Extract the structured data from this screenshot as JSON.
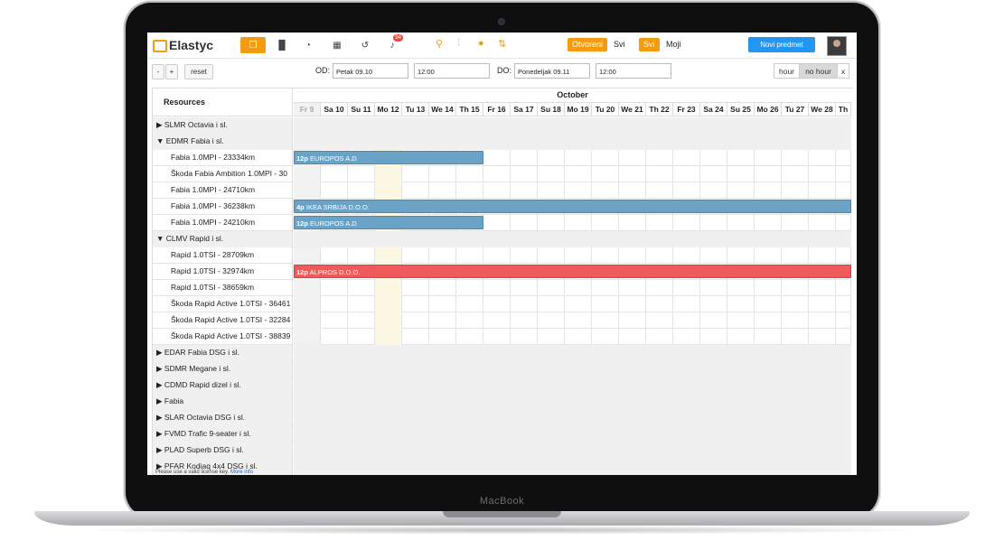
{
  "device_label": "MacBook",
  "app": {
    "logo_text": "Elastyc",
    "bell_count": "94",
    "filter_chips": [
      "Otvoreni",
      "Svi"
    ],
    "owner_chips": [
      "Svi",
      "Moji"
    ],
    "new_button": "Novi predmet"
  },
  "toolbar": {
    "minus": "-",
    "plus": "+",
    "reset": "reset",
    "from_label": "OD:",
    "from_date": "Petak 09.10",
    "from_time": "12:00",
    "to_label": "DO:",
    "to_date": "Ponedeljak 09.11",
    "to_time": "12:00",
    "hour": "hour",
    "no_hour": "no hour",
    "close": "x"
  },
  "scheduler": {
    "resources_header": "Resources",
    "month": "October",
    "days": [
      "Fr 9",
      "Sa 10",
      "Su 11",
      "Mo 12",
      "Tu 13",
      "We 14",
      "Th 15",
      "Fr 16",
      "Sa 17",
      "Su 18",
      "Mo 19",
      "Tu 20",
      "We 21",
      "Th 22",
      "Fr 23",
      "Sa 24",
      "Su 25",
      "Mo 26",
      "Tu 27",
      "We 28",
      "Th"
    ],
    "rows": [
      {
        "type": "group",
        "label": "▶ SLMR Octavia i sl."
      },
      {
        "type": "group",
        "label": "▼ EDMR Fabia i sl."
      },
      {
        "type": "child",
        "label": "Fabia 1.0MPI - 23334km"
      },
      {
        "type": "child",
        "label": "Škoda Fabia Ambition 1.0MPI - 30"
      },
      {
        "type": "child",
        "label": "Fabia 1.0MPI - 24710km"
      },
      {
        "type": "child",
        "label": "Fabia 1.0MPI - 36238km"
      },
      {
        "type": "child",
        "label": "Fabia 1.0MPI - 24210km"
      },
      {
        "type": "group",
        "label": "▼ CLMV Rapid i sl."
      },
      {
        "type": "child",
        "label": "Rapid 1.0TSI - 28709km"
      },
      {
        "type": "child",
        "label": "Rapid 1.0TSI - 32974km"
      },
      {
        "type": "child",
        "label": "Rapid 1.0TSI - 38659km"
      },
      {
        "type": "child",
        "label": "Škoda Rapid Active 1.0TSI - 36461"
      },
      {
        "type": "child",
        "label": "Škoda Rapid Active 1.0TSI - 32284"
      },
      {
        "type": "child",
        "label": "Škoda Rapid Active 1.0TSI - 38839"
      },
      {
        "type": "group",
        "label": "▶ EDAR Fabia DSG i sl."
      },
      {
        "type": "group",
        "label": "▶ SDMR Megane i sl."
      },
      {
        "type": "group",
        "label": "▶ CDMD Rapid dizel i sl."
      },
      {
        "type": "group",
        "label": "▶ Fabia"
      },
      {
        "type": "group",
        "label": "▶ SLAR Octavia DSG i sl."
      },
      {
        "type": "group",
        "label": "▶ FVMD Trafic 9-seater i sl."
      },
      {
        "type": "group",
        "label": "▶ PLAD Superb DSG i sl."
      },
      {
        "type": "group",
        "label": "▶ PFAR Kodiaq 4x4 DSG i sl."
      }
    ],
    "events": [
      {
        "row": 2,
        "start_day": 0,
        "end_day": 7,
        "time": "12p",
        "title": "EUROPOS A.D",
        "color": "blue"
      },
      {
        "row": 5,
        "start_day": 0,
        "end_day": 21,
        "time": "4p",
        "title": "IKEA SRBIJA D.O.O.",
        "color": "blue"
      },
      {
        "row": 6,
        "start_day": 0,
        "end_day": 7,
        "time": "12p",
        "title": "EUROPOS A.D",
        "color": "blue"
      },
      {
        "row": 9,
        "start_day": 0,
        "end_day": 21,
        "time": "12p",
        "title": "ALPROS D.O.O.",
        "color": "red"
      }
    ],
    "license_text": "Please use a valid license key.",
    "license_link": "More info"
  }
}
